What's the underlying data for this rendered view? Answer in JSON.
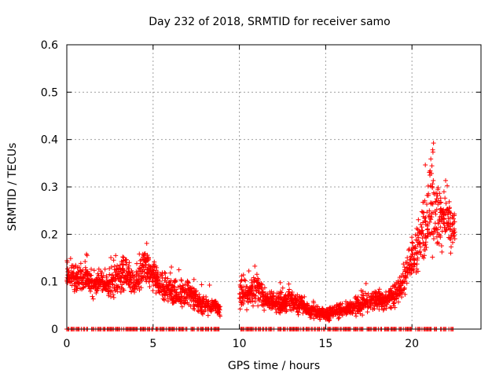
{
  "chart_data": {
    "type": "scatter",
    "title": "Day 232 of 2018, SRMTID for receiver samo",
    "xlabel": "GPS time / hours",
    "ylabel": "SRMTID / TECUs",
    "xlim": [
      0,
      24
    ],
    "ylim": [
      0,
      0.6
    ],
    "grid": true,
    "marker": "+",
    "color": "#ff0000",
    "xticks": [
      0,
      5,
      10,
      15,
      20
    ],
    "xtick_labels": [
      "0",
      "5",
      "10",
      "15",
      "20"
    ],
    "yticks": [
      0,
      0.1,
      0.2,
      0.3,
      0.4,
      0.5,
      0.6
    ],
    "ytick_labels": [
      "0",
      "0.1",
      "0.2",
      "0.3",
      "0.4",
      "0.5",
      "0.6"
    ],
    "series": [
      {
        "name": "SRMTID",
        "description": "dense scatter approximated by trend and spread values",
        "x": [
          0.0,
          0.5,
          1.0,
          1.5,
          2.0,
          2.5,
          3.0,
          3.5,
          4.0,
          4.5,
          5.0,
          5.5,
          6.0,
          6.5,
          7.0,
          7.5,
          8.0,
          8.5,
          8.9,
          10.0,
          10.5,
          11.0,
          11.5,
          12.0,
          12.5,
          13.0,
          13.5,
          14.0,
          14.5,
          15.0,
          15.5,
          16.0,
          16.5,
          17.0,
          17.5,
          18.0,
          18.5,
          19.0,
          19.5,
          20.0,
          20.5,
          21.0,
          21.2,
          21.5,
          22.0,
          22.5
        ],
        "y": [
          0.12,
          0.1,
          0.11,
          0.09,
          0.1,
          0.09,
          0.11,
          0.12,
          0.1,
          0.13,
          0.11,
          0.09,
          0.08,
          0.07,
          0.08,
          0.06,
          0.05,
          0.05,
          0.04,
          0.07,
          0.08,
          0.09,
          0.06,
          0.06,
          0.05,
          0.06,
          0.05,
          0.04,
          0.035,
          0.03,
          0.035,
          0.04,
          0.045,
          0.05,
          0.055,
          0.06,
          0.06,
          0.07,
          0.1,
          0.15,
          0.18,
          0.25,
          0.3,
          0.22,
          0.24,
          0.2
        ],
        "spread": [
          0.03,
          0.04,
          0.04,
          0.04,
          0.03,
          0.04,
          0.05,
          0.05,
          0.04,
          0.05,
          0.04,
          0.04,
          0.04,
          0.04,
          0.04,
          0.03,
          0.03,
          0.02,
          0.02,
          0.04,
          0.05,
          0.05,
          0.03,
          0.03,
          0.03,
          0.03,
          0.03,
          0.02,
          0.02,
          0.02,
          0.02,
          0.02,
          0.02,
          0.03,
          0.03,
          0.03,
          0.03,
          0.03,
          0.04,
          0.05,
          0.08,
          0.15,
          0.18,
          0.1,
          0.08,
          0.06
        ],
        "gaps": [
          [
            8.9,
            10.0
          ],
          [
            22.6,
            24.0
          ]
        ],
        "zero_values_range": [
          0.0,
          22.4
        ]
      }
    ]
  }
}
